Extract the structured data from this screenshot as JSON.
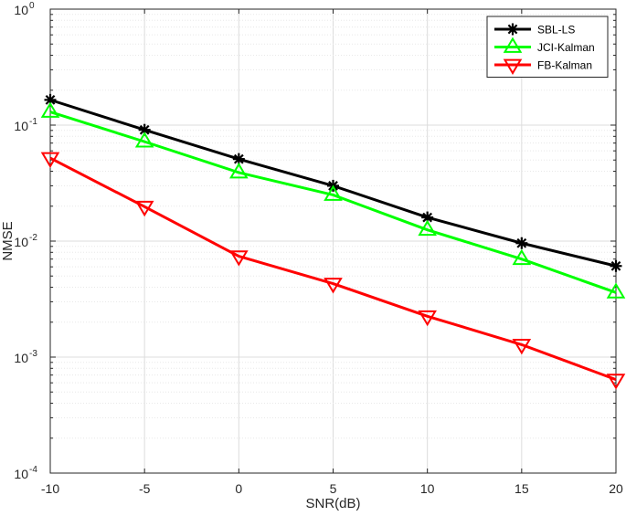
{
  "chart_data": {
    "type": "line",
    "xlabel": "SNR(dB)",
    "ylabel": "NMSE",
    "x": [
      -10,
      -5,
      0,
      5,
      10,
      15,
      20
    ],
    "xlim": [
      -10,
      20
    ],
    "ylim": [
      0.0001,
      1
    ],
    "yscale": "log",
    "grid": true,
    "legend_position": "top-right",
    "x_tick_labels": [
      "-10",
      "-5",
      "0",
      "5",
      "10",
      "15",
      "20"
    ],
    "y_ticks": [
      {
        "base": "10",
        "exp": "-4"
      },
      {
        "base": "10",
        "exp": "-3"
      },
      {
        "base": "10",
        "exp": "-2"
      },
      {
        "base": "10",
        "exp": "-1"
      },
      {
        "base": "10",
        "exp": "0"
      }
    ],
    "series": [
      {
        "name": "SBL-LS",
        "color": "#000000",
        "marker": "asterisk",
        "values": [
          0.165,
          0.091,
          0.051,
          0.03,
          0.016,
          0.0096,
          0.0061
        ]
      },
      {
        "name": "JCI-Kalman",
        "color": "#00ff00",
        "marker": "triangle-up",
        "values": [
          0.13,
          0.072,
          0.039,
          0.025,
          0.0125,
          0.007,
          0.0036
        ]
      },
      {
        "name": "FB-Kalman",
        "color": "#ff0000",
        "marker": "triangle-down",
        "values": [
          0.052,
          0.0198,
          0.0074,
          0.0043,
          0.00225,
          0.00128,
          0.00064
        ]
      }
    ]
  }
}
